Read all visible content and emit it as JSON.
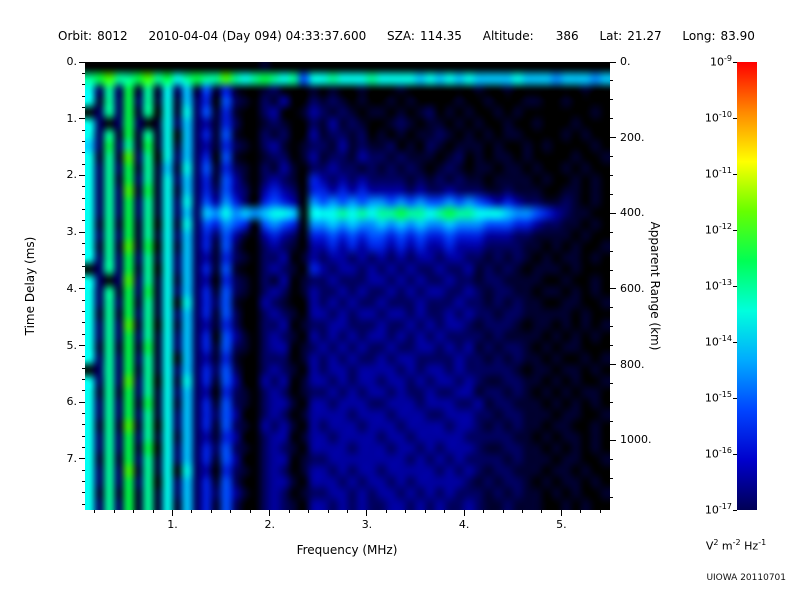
{
  "header": {
    "orbit_label": "Orbit:",
    "orbit_value": "8012",
    "datetime": "2010-04-04 (Day 094) 04:33:37.600",
    "sza_label": "SZA:",
    "sza_value": "114.35",
    "altitude_label": "Altitude:",
    "altitude_value": "386",
    "lat_label": "Lat:",
    "lat_value": "21.27",
    "long_label": "Long:",
    "long_value": "83.90"
  },
  "watermark": "UIOWA 20110701",
  "chart_data": {
    "type": "heatmap",
    "title": "",
    "xlabel": "Frequency (MHz)",
    "ylabel_left": "Time Delay (ms)",
    "ylabel_right": "Apparent Range (km)",
    "x_range_mhz": [
      0.1,
      5.5
    ],
    "x_major_ticks": [
      1,
      2,
      3,
      4,
      5
    ],
    "x_tick_labels": [
      "1.",
      "2.",
      "3.",
      "4.",
      "5."
    ],
    "x_minor_step": 0.2,
    "y_range_ms": [
      0,
      7.9
    ],
    "y_major_ticks": [
      0,
      1,
      2,
      3,
      4,
      5,
      6,
      7
    ],
    "y_tick_labels": [
      "0.",
      "1.",
      "2.",
      "3.",
      "4.",
      "5.",
      "6.",
      "7."
    ],
    "y_minor_step": 0.2,
    "right_axis_ticks_km": [
      0,
      200,
      400,
      600,
      800,
      1000
    ],
    "right_axis_tick_labels": [
      "0.",
      "200.",
      "400.",
      "600.",
      "800.",
      "1000."
    ],
    "right_axis_minor_step_km": 50,
    "km_per_ms": 149.9,
    "colorbar": {
      "label_base": "10",
      "exponents": [
        "-9",
        "-10",
        "-11",
        "-12",
        "-13",
        "-14",
        "-15",
        "-16",
        "-17"
      ],
      "gradient": [
        "#ff0000",
        "#ff8800",
        "#ffff00",
        "#66ff00",
        "#00ff55",
        "#00ffdd",
        "#00aaff",
        "#0044ff",
        "#0000cc",
        "#000055"
      ],
      "unit": [
        {
          "t": "V"
        },
        {
          "t": "2",
          "sup": true
        },
        {
          "t": " m"
        },
        {
          "t": "-2",
          "sup": true
        },
        {
          "t": " Hz"
        },
        {
          "t": "-1",
          "sup": true
        }
      ]
    },
    "palette": [
      "#000000",
      "#000030",
      "#000060",
      "#0000a0",
      "#0020e0",
      "#0050ff",
      "#0090ff",
      "#00c8ff",
      "#00ffee",
      "#00ff99",
      "#00ff44",
      "#44ff00",
      "#aaff00",
      "#ffff00",
      "#ff8800",
      "#ff0000"
    ],
    "grid_rows": [
      "000000000000000000100000000000000000000000000000000000",
      "9ab99ab9a89a99b989a98958898889888878787877778777677767",
      "8292a1918271514100120001010010001000000010010000000100",
      "8192a2918172405210213002121010010100001001000110010000",
      "0292a1908182514100230013212101101012010100101000000010",
      "8202a2018272314200121002131210012101101010010010001000",
      "8291a1918072415100212003122120101011210101011000010100",
      "72a291a18172314210231012213121120102101110100101000010",
      "8191b2908272405100122013122132212111012010110100001001",
      "8292a1917182514210213102232212121210121011011010010100",
      "8291a2918272415310232104323232222121212110111101001010",
      "8292b1a18172425320343204434343333232232221121110011010",
      "8292a2918282536420454306565656656565565654343221121010",
      "8292a291827276867678870888989899a9989a9988876654321100",
      "8191a1908182546540565406676766767676676665554432211010",
      "8292a1918272425310343204454545545454454443332211110100",
      "8191b1a08172415200232103343434434343343332222110101001",
      "8292a2918272314210223013233232323233233221212101011010",
      "0292a1908272415100232104323323232322322312121011101000",
      "8202b2918172304210213012232223323232232212211110010010",
      "8291a2a18272415210232013223232232323322321221101101010",
      "8292a1918082425100321003232322322232223221212110011001",
      "8191a2918272415200232103323233233232232322122111110100",
      "8292b1908172314200223012233222322323233212221011010101",
      "8292a2918272405310232103232323323232322221211110101010",
      "8191a1a18272415210233012323232232233232312122101011000",
      "8292a2918072314100222013232322323322223221212110100101",
      "0292a1918272425200232103233233332323323222221011011010",
      "8292b2908182415300323013323233233232332321122110101001",
      "8191a2918272304210232012232323323223223312212101010110",
      "8292a1a18172415210233103323332233323332231221110101010",
      "8292a2918272425300232013333233323332233322122111011001",
      "8191b1908272415210323103233323332333323321212110110010",
      "8292a2918172314300233013323333233233333222221101011010",
      "8292a1a08272425210232103333233323323233321122110101010",
      "8191a2918272415300233012233333333232323222212111011001",
      "8292b1918082304210232013323233233333232321221110110100",
      "8292a2908272415200233103332323323233333212122101011010",
      "8191a1918272425310232012233232332323232221212110101001",
      "8292a1918172415200232103323232233232322321121110010100"
    ]
  }
}
